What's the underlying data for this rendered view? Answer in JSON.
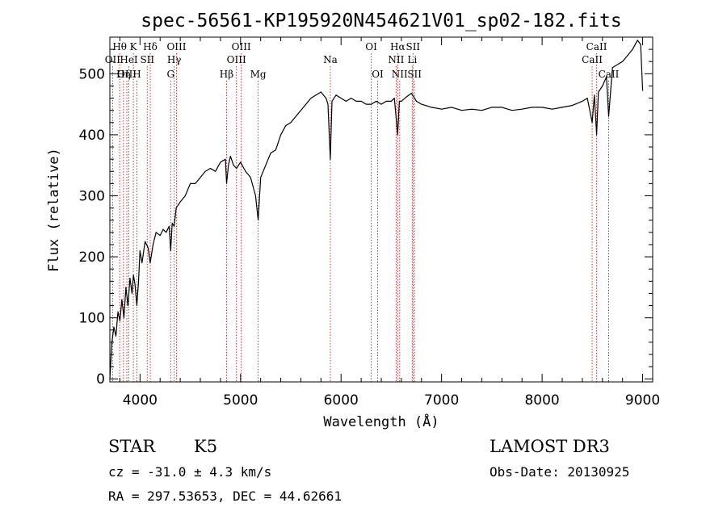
{
  "chart_data": {
    "type": "line",
    "title": "spec-56561-KP195920N454621V01_sp02-182.fits",
    "xlabel": "Wavelength (Å)",
    "ylabel": "Flux (relative)",
    "xlim": [
      3700,
      9100
    ],
    "ylim": [
      -5,
      560
    ],
    "xticks": [
      4000,
      5000,
      6000,
      7000,
      8000,
      9000
    ],
    "yticks": [
      0,
      100,
      200,
      300,
      400,
      500
    ],
    "grid": false,
    "series": [
      {
        "x": [
          3700,
          3720,
          3740,
          3760,
          3780,
          3800,
          3820,
          3840,
          3860,
          3880,
          3900,
          3920,
          3935,
          3950,
          3968,
          3985,
          4000,
          4020,
          4050,
          4080,
          4101,
          4130,
          4160,
          4200,
          4230,
          4260,
          4290,
          4305,
          4320,
          4340,
          4360,
          4400,
          4450,
          4500,
          4550,
          4600,
          4650,
          4700,
          4750,
          4800,
          4850,
          4861,
          4880,
          4900,
          4930,
          4960,
          5000,
          5050,
          5100,
          5150,
          5175,
          5200,
          5250,
          5300,
          5350,
          5400,
          5450,
          5500,
          5550,
          5600,
          5650,
          5700,
          5750,
          5800,
          5850,
          5870,
          5893,
          5910,
          5950,
          6000,
          6050,
          6100,
          6150,
          6200,
          6250,
          6300,
          6350,
          6400,
          6450,
          6500,
          6530,
          6563,
          6580,
          6600,
          6650,
          6700,
          6750,
          6800,
          6900,
          7000,
          7100,
          7200,
          7300,
          7400,
          7500,
          7600,
          7700,
          7800,
          7900,
          8000,
          8100,
          8200,
          8300,
          8400,
          8450,
          8498,
          8520,
          8542,
          8560,
          8600,
          8640,
          8662,
          8700,
          8750,
          8800,
          8850,
          8900,
          8950,
          8980,
          9000
        ],
        "y": [
          0,
          60,
          85,
          70,
          110,
          95,
          130,
          100,
          150,
          120,
          165,
          140,
          170,
          155,
          120,
          160,
          210,
          190,
          225,
          215,
          190,
          220,
          240,
          235,
          245,
          240,
          250,
          210,
          255,
          250,
          280,
          290,
          300,
          320,
          320,
          330,
          340,
          345,
          340,
          355,
          360,
          320,
          350,
          365,
          350,
          345,
          355,
          340,
          330,
          300,
          260,
          330,
          350,
          370,
          375,
          400,
          415,
          420,
          430,
          440,
          450,
          460,
          465,
          470,
          460,
          450,
          360,
          455,
          465,
          460,
          455,
          460,
          455,
          455,
          450,
          450,
          455,
          450,
          455,
          455,
          460,
          400,
          455,
          455,
          462,
          468,
          455,
          450,
          445,
          442,
          445,
          440,
          442,
          440,
          445,
          445,
          440,
          442,
          445,
          445,
          442,
          445,
          448,
          455,
          460,
          420,
          465,
          400,
          470,
          480,
          495,
          430,
          510,
          515,
          520,
          530,
          540,
          555,
          548,
          472
        ]
      }
    ],
    "line_markers": [
      {
        "label": "OII",
        "x": 3727,
        "row": 2
      },
      {
        "label": "Hθ",
        "x": 3798,
        "row": 1
      },
      {
        "label": "OIII",
        "x": 3869,
        "row": 3
      },
      {
        "label": "K",
        "x": 3934,
        "row": 1
      },
      {
        "label": "HeI",
        "x": 3889,
        "row": 2
      },
      {
        "label": "Hη",
        "x": 3835,
        "row": 3
      },
      {
        "label": "H",
        "x": 3969,
        "row": 3
      },
      {
        "label": "SII",
        "x": 4072,
        "row": 2
      },
      {
        "label": "Hδ",
        "x": 4102,
        "row": 1
      },
      {
        "label": "OIII",
        "x": 4363,
        "row": 1
      },
      {
        "label": "Hγ",
        "x": 4340,
        "row": 2
      },
      {
        "label": "G",
        "x": 4305,
        "row": 3
      },
      {
        "label": "Hβ",
        "x": 4861,
        "row": 3
      },
      {
        "label": "OIII",
        "x": 5007,
        "row": 1
      },
      {
        "label": "OIII",
        "x": 4959,
        "row": 2
      },
      {
        "label": "Mg",
        "x": 5175,
        "row": 3
      },
      {
        "label": "Na",
        "x": 5893,
        "row": 2
      },
      {
        "label": "OI",
        "x": 6300,
        "row": 1
      },
      {
        "label": "OI",
        "x": 6364,
        "row": 3
      },
      {
        "label": "Hα",
        "x": 6563,
        "row": 1
      },
      {
        "label": "SII",
        "x": 6716,
        "row": 1
      },
      {
        "label": "NII",
        "x": 6548,
        "row": 2
      },
      {
        "label": "Li",
        "x": 6708,
        "row": 2
      },
      {
        "label": "NII",
        "x": 6583,
        "row": 3
      },
      {
        "label": "SII",
        "x": 6731,
        "row": 3
      },
      {
        "label": "CaII",
        "x": 8542,
        "row": 1
      },
      {
        "label": "CaII",
        "x": 8498,
        "row": 2
      },
      {
        "label": "CaII",
        "x": 8662,
        "row": 3
      }
    ]
  },
  "info": {
    "object_class": "STAR",
    "subclass": "K5",
    "survey": "LAMOST DR3",
    "cz": "cz = -31.0 ± 4.3 km/s",
    "obs_date": "Obs-Date: 20130925",
    "coords": "RA = 297.53653, DEC =  44.62661"
  },
  "colors": {
    "spectrum": "#000000",
    "marker_lines": "#cc3333"
  }
}
